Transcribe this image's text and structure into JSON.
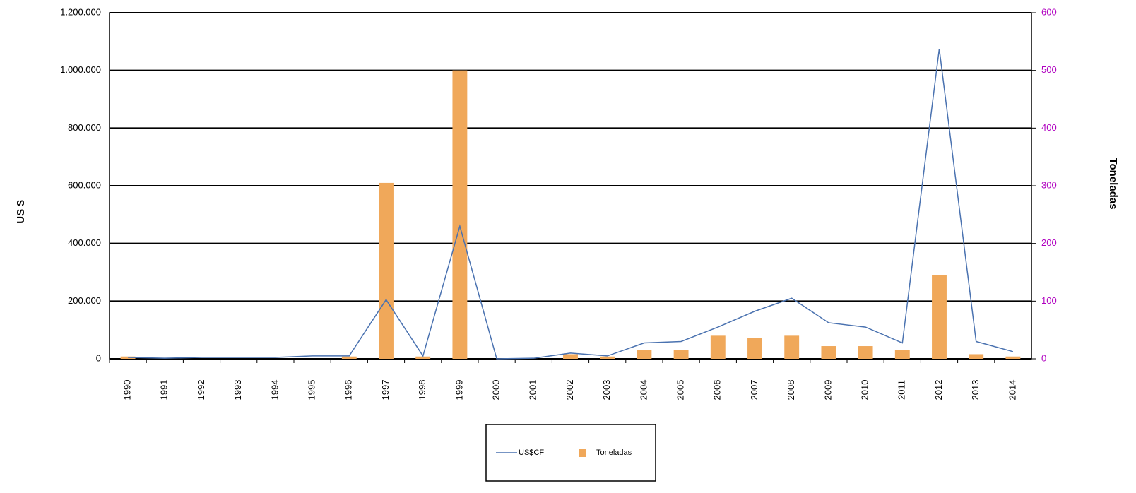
{
  "chart_data": {
    "type": "bar-line",
    "categories": [
      "1990",
      "1991",
      "1992",
      "1993",
      "1994",
      "1995",
      "1996",
      "1997",
      "1998",
      "1999",
      "2000",
      "2001",
      "2002",
      "2003",
      "2004",
      "2005",
      "2006",
      "2007",
      "2008",
      "2009",
      "2010",
      "2011",
      "2012",
      "2013",
      "2014"
    ],
    "ylabel": "US $",
    "y2label": "Toneladas",
    "ylim": [
      0,
      1200000
    ],
    "yticks": [
      0,
      {
        "value": 200000,
        "label": "200.000"
      },
      {
        "value": 400000,
        "label": "400.000"
      },
      {
        "value": 600000,
        "label": "600.000"
      },
      {
        "value": 800000,
        "label": "800.000"
      },
      {
        "value": 1000000,
        "label": "1.000.000"
      },
      {
        "value": 1200000,
        "label": "1.200.000"
      }
    ],
    "y2lim": [
      0,
      600
    ],
    "y2ticks": [
      0,
      100,
      200,
      300,
      400,
      500,
      600
    ],
    "y2tick_color": "#b000c0",
    "grid": true,
    "series": [
      {
        "name": "US$CF",
        "type": "line",
        "color": "#4a72b0",
        "values": [
          5000,
          2000,
          5000,
          5000,
          5000,
          10000,
          10000,
          205000,
          10000,
          460000,
          0,
          2000,
          20000,
          10000,
          55000,
          60000,
          110000,
          165000,
          210000,
          125000,
          110000,
          55000,
          1075000,
          60000,
          25000
        ]
      },
      {
        "name": "Toneladas",
        "type": "bar",
        "axis": "y2",
        "color": "#f0a85a",
        "values": [
          4,
          0,
          0,
          0,
          0,
          0,
          4,
          305,
          4,
          500,
          0,
          0,
          8,
          4,
          15,
          15,
          40,
          36,
          40,
          22,
          22,
          15,
          145,
          8,
          4
        ]
      }
    ]
  }
}
